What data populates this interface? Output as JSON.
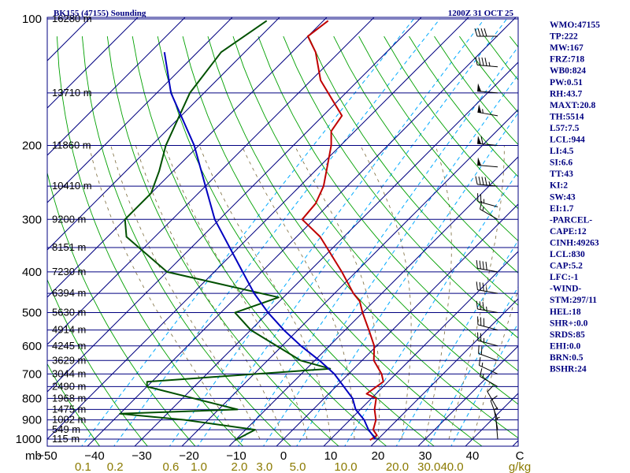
{
  "header": {
    "title": "BK155 (47155) Sounding",
    "time": "1200Z 31 OCT 25"
  },
  "index_panel": [
    "WMO:47155",
    "TP:222",
    "MW:167",
    "FRZ:718",
    "WB0:824",
    "PW:0.51",
    "RH:43.7",
    "MAXT:20.8",
    "TH:5514",
    "L57:7.5",
    "LCL:944",
    "LI:4.5",
    "SI:6.6",
    "TT:43",
    "KI:2",
    "SW:43",
    "EI:1.7",
    "-PARCEL-",
    "CAPE:12",
    "CINH:49263",
    "LCL:830",
    "CAP:5.2",
    "LFC:-1",
    "-WIND-",
    "STM:297/11",
    "HEL:18",
    "SHR+:0.0",
    "SRDS:85",
    "EHI:0.0",
    "BRN:0.5",
    "BSHR:24"
  ],
  "colors": {
    "isobar": "#000080",
    "isotherm": "#000080",
    "dry_adiabat": "#00a000",
    "moist_adiabat": "#00a000",
    "mixing_ratio": "#00aaff",
    "temperature": "#c00000",
    "dewpoint": "#005000",
    "parcel": "#0000c0",
    "wind": "#000000"
  },
  "chart_data": {
    "type": "line",
    "title": "BK155 (47155) Sounding",
    "subtitle": "1200Z 31 OCT 25",
    "xlabel": "",
    "ylabel": "mb",
    "x_ticks": [
      "−50",
      "−40",
      "−30",
      "−20",
      "−10",
      "0",
      "10",
      "20",
      "30",
      "40",
      "C"
    ],
    "x_tick_values": [
      -50,
      -40,
      -30,
      -20,
      -10,
      0,
      10,
      20,
      30,
      40,
      50
    ],
    "y_ticks": [
      100,
      200,
      300,
      400,
      500,
      600,
      700,
      800,
      900,
      1000
    ],
    "y_axis_label": "mb",
    "mixing_ratio_labels": [
      "0.1",
      "0.2",
      "0.6",
      "1.0",
      "2.0",
      "3.0",
      "5.0",
      "10.0",
      "20.0",
      "30.0",
      "40.0",
      "g/kg"
    ],
    "height_labels": [
      {
        "p": 100,
        "text": "16280 m"
      },
      {
        "p": 150,
        "text": "13710 m"
      },
      {
        "p": 200,
        "text": "11860 m"
      },
      {
        "p": 250,
        "text": "10410 m"
      },
      {
        "p": 300,
        "text": "9200 m"
      },
      {
        "p": 350,
        "text": "8151 m"
      },
      {
        "p": 400,
        "text": "7230 m"
      },
      {
        "p": 450,
        "text": "6394 m"
      },
      {
        "p": 500,
        "text": "5630 m"
      },
      {
        "p": 550,
        "text": "4914 m"
      },
      {
        "p": 600,
        "text": "4245 m"
      },
      {
        "p": 650,
        "text": "3629 m"
      },
      {
        "p": 700,
        "text": "3044 m"
      },
      {
        "p": 750,
        "text": "2490 m"
      },
      {
        "p": 800,
        "text": "1968 m"
      },
      {
        "p": 850,
        "text": "1475 m"
      },
      {
        "p": 900,
        "text": "1002 m"
      },
      {
        "p": 950,
        "text": "549 m"
      },
      {
        "p": 1000,
        "text": "115 m"
      }
    ],
    "series": [
      {
        "kind": "temperature",
        "points": [
          [
            101,
            -79
          ],
          [
            110,
            -80
          ],
          [
            120,
            -75
          ],
          [
            140,
            -68
          ],
          [
            170,
            -56
          ],
          [
            185,
            -55
          ],
          [
            200,
            -52
          ],
          [
            220,
            -49
          ],
          [
            250,
            -45
          ],
          [
            275,
            -43
          ],
          [
            300,
            -42.5
          ],
          [
            330,
            -35
          ],
          [
            400,
            -23
          ],
          [
            450,
            -16
          ],
          [
            470,
            -13
          ],
          [
            500,
            -10
          ],
          [
            550,
            -5
          ],
          [
            600,
            -0.5
          ],
          [
            650,
            2.5
          ],
          [
            700,
            7
          ],
          [
            730,
            9
          ],
          [
            780,
            8
          ],
          [
            800,
            11
          ],
          [
            850,
            13
          ],
          [
            900,
            15.5
          ],
          [
            950,
            17
          ],
          [
            980,
            19
          ],
          [
            1005,
            18.5
          ]
        ]
      },
      {
        "kind": "dewpoint",
        "points": [
          [
            101,
            -92
          ],
          [
            120,
            -95
          ],
          [
            150,
            -93
          ],
          [
            200,
            -87
          ],
          [
            230,
            -83
          ],
          [
            260,
            -80
          ],
          [
            300,
            -80
          ],
          [
            330,
            -76
          ],
          [
            400,
            -60
          ],
          [
            460,
            -31
          ],
          [
            500,
            -37
          ],
          [
            550,
            -30
          ],
          [
            650,
            -13
          ],
          [
            680,
            -5
          ],
          [
            730,
            -41
          ],
          [
            750,
            -40
          ],
          [
            850,
            -16
          ],
          [
            870,
            -40
          ],
          [
            900,
            -25
          ],
          [
            950,
            -8
          ],
          [
            1005,
            -10
          ]
        ]
      },
      {
        "kind": "parcel",
        "points": [
          [
            120,
            -107
          ],
          [
            150,
            -97
          ],
          [
            200,
            -81
          ],
          [
            250,
            -70
          ],
          [
            300,
            -61
          ],
          [
            400,
            -44
          ],
          [
            450,
            -37
          ],
          [
            500,
            -30
          ],
          [
            550,
            -23
          ],
          [
            600,
            -16
          ],
          [
            650,
            -9
          ],
          [
            700,
            -3
          ],
          [
            800,
            6
          ],
          [
            850,
            9
          ],
          [
            900,
            13
          ],
          [
            950,
            16
          ],
          [
            1000,
            19.5
          ]
        ]
      }
    ],
    "wind_barbs": [
      {
        "p": 110,
        "dir": 270,
        "spd": 40
      },
      {
        "p": 130,
        "dir": 275,
        "spd": 45
      },
      {
        "p": 150,
        "dir": 275,
        "spd": 50
      },
      {
        "p": 170,
        "dir": 280,
        "spd": 55
      },
      {
        "p": 200,
        "dir": 275,
        "spd": 60
      },
      {
        "p": 225,
        "dir": 275,
        "spd": 50
      },
      {
        "p": 250,
        "dir": 275,
        "spd": 45
      },
      {
        "p": 280,
        "dir": 285,
        "spd": 25
      },
      {
        "p": 300,
        "dir": 300,
        "spd": 15
      },
      {
        "p": 400,
        "dir": 280,
        "spd": 40
      },
      {
        "p": 450,
        "dir": 280,
        "spd": 35
      },
      {
        "p": 500,
        "dir": 280,
        "spd": 35
      },
      {
        "p": 550,
        "dir": 285,
        "spd": 30
      },
      {
        "p": 600,
        "dir": 285,
        "spd": 25
      },
      {
        "p": 650,
        "dir": 290,
        "spd": 20
      },
      {
        "p": 700,
        "dir": 295,
        "spd": 15
      },
      {
        "p": 750,
        "dir": 300,
        "spd": 15
      },
      {
        "p": 850,
        "dir": 330,
        "spd": 10
      },
      {
        "p": 900,
        "dir": 340,
        "spd": 10
      },
      {
        "p": 950,
        "dir": 350,
        "spd": 5
      },
      {
        "p": 1000,
        "dir": 355,
        "spd": 5
      }
    ]
  }
}
